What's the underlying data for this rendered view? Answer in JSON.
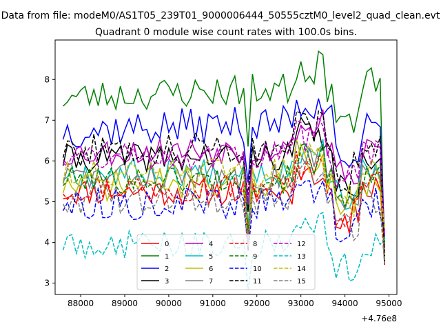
{
  "figure": {
    "suptitle": "Data from file: modeM0/AS1T05_239T01_9000006444_50555cztM0_level2_quad_clean.evt",
    "offset_text": "+4.76e8"
  },
  "chart_data": {
    "type": "line",
    "title": "Quadrant 0 module wise count rates with 100.0s bins.",
    "xlabel": "",
    "ylabel": "",
    "x_offset": 476000000,
    "x_range": [
      87600,
      94900
    ],
    "xlim": [
      87420,
      95180
    ],
    "ylim": [
      2.72,
      8.97
    ],
    "x_ticks": [
      88000,
      89000,
      90000,
      91000,
      92000,
      93000,
      94000,
      95000
    ],
    "x_tick_labels": [
      "88000",
      "89000",
      "90000",
      "91000",
      "92000",
      "93000",
      "94000",
      "95000"
    ],
    "y_ticks": [
      3,
      4,
      5,
      6,
      7,
      8
    ],
    "y_tick_labels": [
      "3",
      "4",
      "5",
      "6",
      "7",
      "8"
    ],
    "grid": false,
    "legend_position": "lower center",
    "legend_columns": 4,
    "series": [
      {
        "name": "0",
        "color": "#ff0000",
        "dash": "solid",
        "base": 5.25,
        "amp": 0.35,
        "seed": 11,
        "slope": 0.0
      },
      {
        "name": "1",
        "color": "#008000",
        "dash": "solid",
        "base": 7.55,
        "amp": 0.4,
        "seed": 23,
        "slope": 0.35
      },
      {
        "name": "2",
        "color": "#0000ff",
        "dash": "solid",
        "base": 6.75,
        "amp": 0.45,
        "seed": 37,
        "slope": 0.25
      },
      {
        "name": "3",
        "color": "#000000",
        "dash": "solid",
        "base": 6.05,
        "amp": 0.35,
        "seed": 41,
        "slope": 0.1
      },
      {
        "name": "4",
        "color": "#bf00bf",
        "dash": "solid",
        "base": 6.2,
        "amp": 0.35,
        "seed": 53,
        "slope": 0.15
      },
      {
        "name": "5",
        "color": "#00bfbf",
        "dash": "solid",
        "base": 5.7,
        "amp": 0.35,
        "seed": 67,
        "slope": 0.1
      },
      {
        "name": "6",
        "color": "#bfbf00",
        "dash": "solid",
        "base": 5.4,
        "amp": 0.4,
        "seed": 71,
        "slope": 0.1
      },
      {
        "name": "7",
        "color": "#808080",
        "dash": "solid",
        "base": 5.6,
        "amp": 0.35,
        "seed": 83,
        "slope": 0.05
      },
      {
        "name": "8",
        "color": "#ff0000",
        "dash": "dashed",
        "base": 5.35,
        "amp": 0.35,
        "seed": 97,
        "slope": 0.05
      },
      {
        "name": "9",
        "color": "#008000",
        "dash": "dashed",
        "base": 5.55,
        "amp": 0.35,
        "seed": 101,
        "slope": 0.0
      },
      {
        "name": "10",
        "color": "#0000ff",
        "dash": "dashed",
        "base": 4.95,
        "amp": 0.4,
        "seed": 113,
        "slope": 0.0
      },
      {
        "name": "11",
        "color": "#000000",
        "dash": "dashed",
        "base": 6.25,
        "amp": 0.4,
        "seed": 127,
        "slope": 0.15
      },
      {
        "name": "12",
        "color": "#bf00bf",
        "dash": "dashed",
        "base": 6.1,
        "amp": 0.35,
        "seed": 131,
        "slope": 0.1
      },
      {
        "name": "13",
        "color": "#00bfbf",
        "dash": "dashed",
        "base": 3.95,
        "amp": 0.35,
        "seed": 149,
        "slope": 0.0
      },
      {
        "name": "14",
        "color": "#bfbf00",
        "dash": "dashed",
        "base": 5.65,
        "amp": 0.35,
        "seed": 151,
        "slope": 0.1
      },
      {
        "name": "15",
        "color": "#808080",
        "dash": "dashed",
        "base": 5.1,
        "amp": 0.4,
        "seed": 163,
        "slope": 0.0
      }
    ]
  }
}
